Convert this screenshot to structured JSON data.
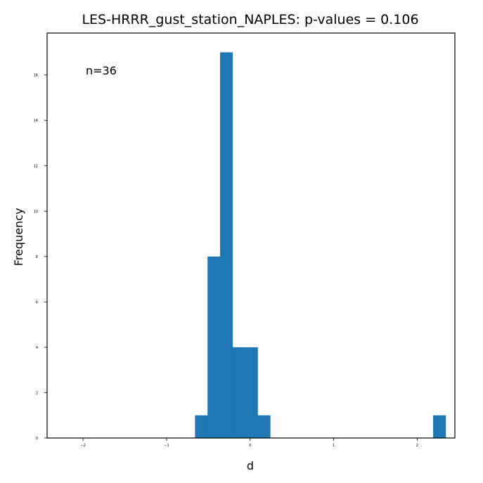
{
  "chart_data": {
    "type": "bar",
    "title": "LES-HRRR_gust_station_NAPLES: p-values = 0.106",
    "xlabel": "d",
    "ylabel": "Frequency",
    "annotation": "n=36",
    "xlim": [
      -2.43,
      2.45
    ],
    "ylim": [
      0,
      17.85
    ],
    "x_ticks": [
      -2,
      -1,
      0,
      1,
      2
    ],
    "x_tick_labels": [
      "−2",
      "−1",
      "0",
      "1",
      "2"
    ],
    "y_ticks": [
      0,
      2,
      4,
      6,
      8,
      10,
      12,
      14,
      16
    ],
    "y_tick_labels": [
      "0",
      "2",
      "4",
      "6",
      "8",
      "10",
      "12",
      "14",
      "16"
    ],
    "bins": [
      {
        "x0": -0.66,
        "x1": -0.51,
        "value": 1
      },
      {
        "x0": -0.51,
        "x1": -0.36,
        "value": 8
      },
      {
        "x0": -0.36,
        "x1": -0.21,
        "value": 17
      },
      {
        "x0": -0.21,
        "x1": -0.06,
        "value": 4
      },
      {
        "x0": -0.06,
        "x1": 0.09,
        "value": 4
      },
      {
        "x0": 0.09,
        "x1": 0.24,
        "value": 1
      },
      {
        "x0": 2.19,
        "x1": 2.34,
        "value": 1
      }
    ],
    "bar_color": "#1f77b4",
    "grid": false,
    "legend": "none"
  }
}
